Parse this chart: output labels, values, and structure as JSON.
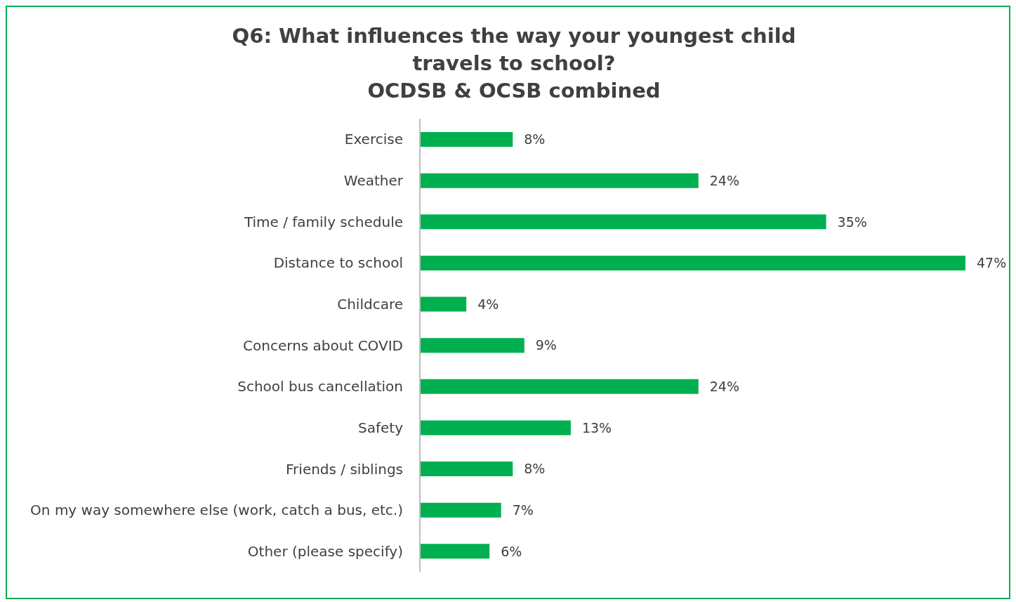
{
  "chart_data": {
    "type": "bar",
    "orientation": "horizontal",
    "title": "Q6: What influences the way your youngest child\ntravels to school?\nOCDSB & OCSB combined",
    "categories": [
      "Exercise",
      "Weather",
      "Time / family schedule",
      "Distance to school",
      "Childcare",
      "Concerns about COVID",
      "School bus cancellation",
      "Safety",
      "Friends / siblings",
      "On my way somewhere else (work, catch a bus, etc.)",
      "Other (please specify)"
    ],
    "values": [
      8,
      24,
      35,
      47,
      4,
      9,
      24,
      13,
      8,
      7,
      6
    ],
    "value_labels": [
      "8%",
      "24%",
      "35%",
      "47%",
      "4%",
      "9%",
      "24%",
      "13%",
      "8%",
      "7%",
      "6%"
    ],
    "color": "#00b050",
    "grid": false,
    "legend": false
  }
}
